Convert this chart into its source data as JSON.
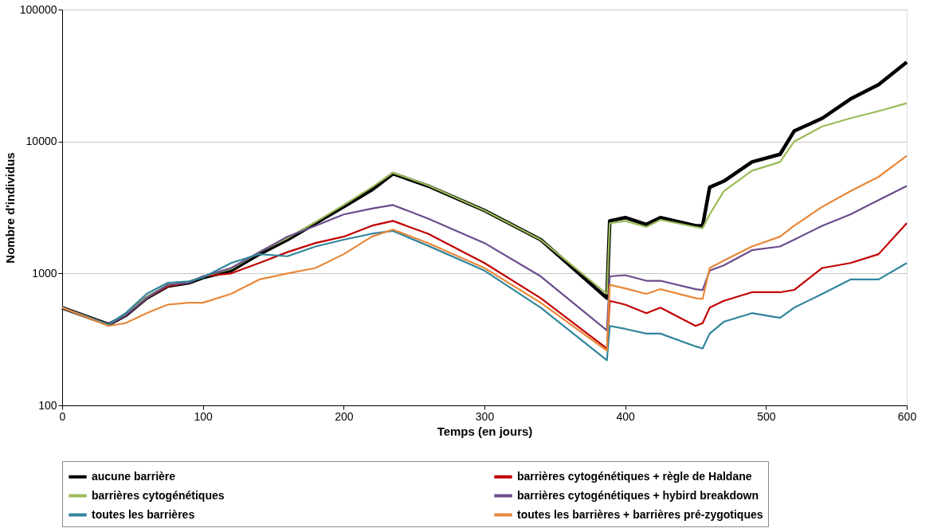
{
  "chart_data": {
    "type": "line",
    "xlabel": "Temps (en jours)",
    "ylabel": "Nombre d'individus",
    "x": [
      0,
      33,
      45,
      60,
      75,
      90,
      100,
      120,
      140,
      160,
      180,
      200,
      220,
      235,
      260,
      300,
      340,
      387,
      389,
      400,
      415,
      425,
      450,
      455,
      460,
      470,
      490,
      510,
      520,
      540,
      560,
      580,
      600
    ],
    "series": [
      {
        "name": "aucune barrière",
        "color": "#000000",
        "values": [
          550,
          410,
          480,
          650,
          800,
          850,
          930,
          1050,
          1400,
          1800,
          2400,
          3200,
          4300,
          5700,
          4600,
          3000,
          1800,
          650,
          2500,
          2650,
          2350,
          2650,
          2300,
          2300,
          4500,
          5000,
          7000,
          8000,
          12000,
          15000,
          21000,
          27000,
          40000
        ]
      },
      {
        "name": "barrières cytogénétiques + règle de Haldane",
        "color": "#c00000",
        "values": [
          550,
          410,
          480,
          650,
          800,
          850,
          950,
          1000,
          1200,
          1450,
          1700,
          1900,
          2300,
          2500,
          2000,
          1200,
          650,
          270,
          620,
          580,
          500,
          550,
          400,
          420,
          550,
          620,
          720,
          720,
          750,
          1100,
          1200,
          1400,
          2400
        ]
      },
      {
        "name": "barrières cytogénétiques",
        "color": "#9bbb59",
        "values": [
          550,
          410,
          490,
          660,
          820,
          860,
          950,
          1080,
          1450,
          1850,
          2450,
          3300,
          4500,
          5800,
          4650,
          3000,
          1800,
          700,
          2400,
          2500,
          2250,
          2550,
          2250,
          2200,
          2800,
          4200,
          6000,
          7000,
          10000,
          13000,
          15000,
          17000,
          19500
        ]
      },
      {
        "name": "barrières cytogénétiques + hybird breakdown",
        "color": "#6a4c8c",
        "values": [
          550,
          410,
          480,
          650,
          820,
          850,
          950,
          1100,
          1450,
          1900,
          2300,
          2800,
          3100,
          3300,
          2600,
          1700,
          950,
          370,
          950,
          970,
          880,
          880,
          760,
          750,
          1050,
          1150,
          1500,
          1600,
          1800,
          2300,
          2800,
          3600,
          4600
        ]
      },
      {
        "name": "toutes les barrières",
        "color": "#31859c",
        "values": [
          550,
          410,
          500,
          700,
          850,
          870,
          930,
          1200,
          1400,
          1350,
          1600,
          1800,
          2000,
          2100,
          1620,
          1050,
          550,
          220,
          400,
          380,
          350,
          350,
          280,
          270,
          350,
          430,
          500,
          460,
          550,
          700,
          900,
          900,
          1200
        ]
      },
      {
        "name": "toutes les barrières + barrières pré-zygotiques",
        "color": "#e8883a",
        "values": [
          550,
          400,
          420,
          500,
          580,
          600,
          600,
          700,
          900,
          1000,
          1100,
          1400,
          1900,
          2150,
          1700,
          1100,
          600,
          260,
          820,
          770,
          700,
          760,
          650,
          640,
          1100,
          1250,
          1600,
          1900,
          2300,
          3200,
          4200,
          5400,
          7800
        ]
      }
    ],
    "xlim": [
      0,
      600
    ],
    "xticks": [
      0,
      100,
      200,
      300,
      400,
      500,
      600
    ],
    "ylim": [
      100,
      100000
    ],
    "yticks": [
      100,
      1000,
      10000,
      100000
    ],
    "log": "y",
    "grid": "y",
    "legend": "bottom",
    "marker": "none",
    "line_style": "solid"
  }
}
